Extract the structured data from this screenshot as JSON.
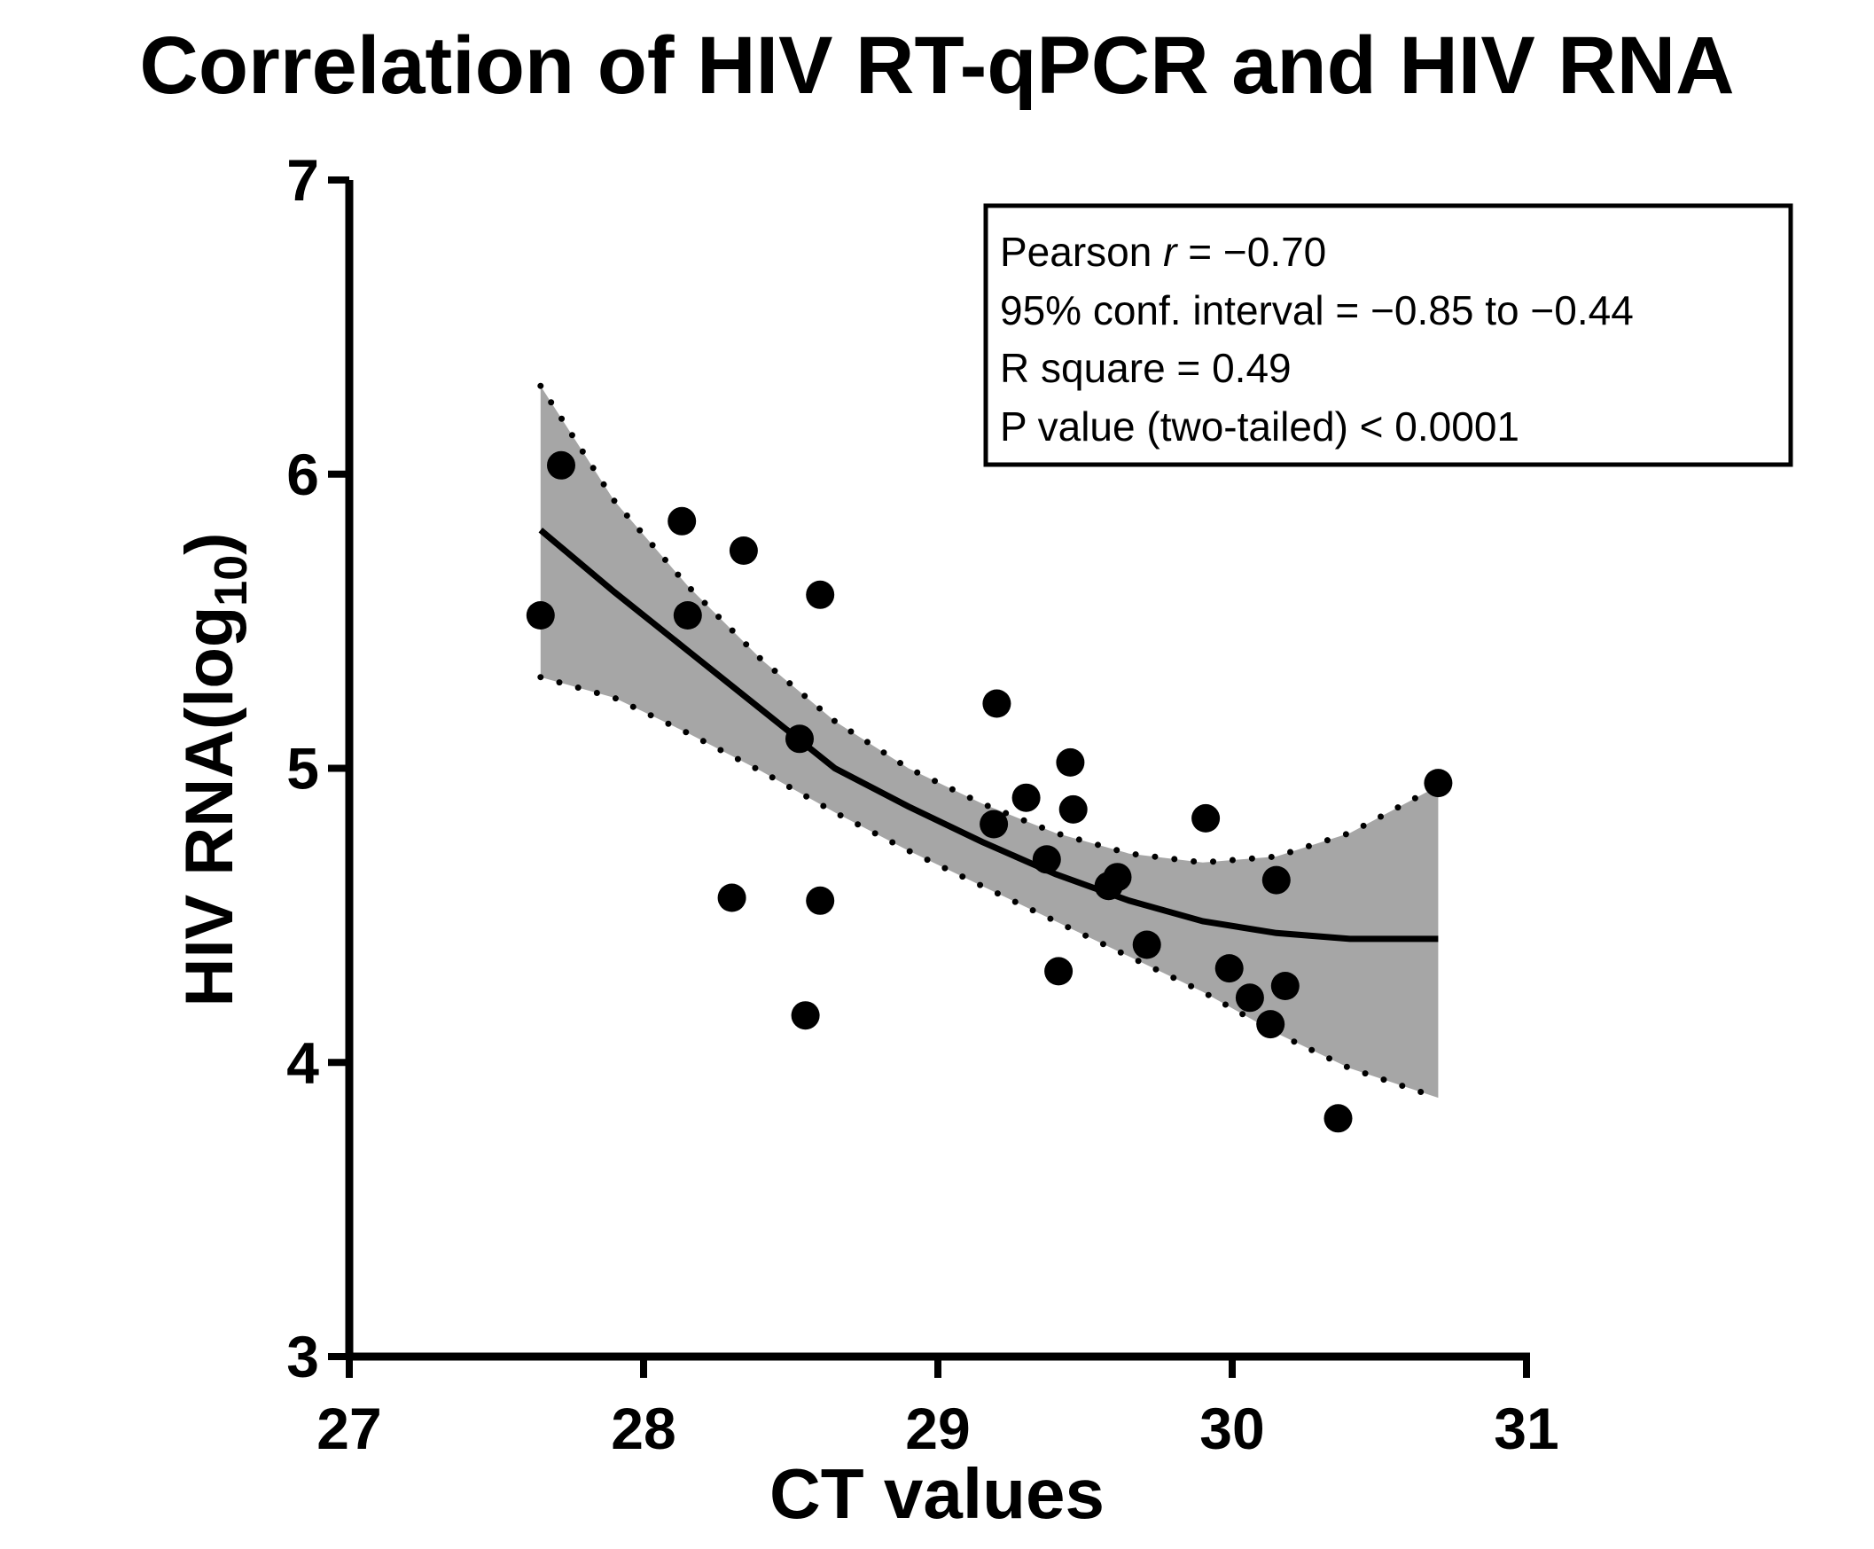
{
  "chart_data": {
    "type": "scatter",
    "title": "Correlation of HIV RT-qPCR and HIV RNA",
    "xlabel": "CT values",
    "ylabel_main": "HIV RNA(log",
    "ylabel_sub": "10",
    "ylabel_close": ")",
    "xlim": [
      27,
      31
    ],
    "ylim": [
      3,
      7
    ],
    "xticks": [
      27,
      28,
      29,
      30,
      31
    ],
    "yticks": [
      3,
      4,
      5,
      6,
      7
    ],
    "grid": false,
    "points": [
      {
        "x": 27.65,
        "y": 5.52
      },
      {
        "x": 27.72,
        "y": 6.03
      },
      {
        "x": 28.13,
        "y": 5.84
      },
      {
        "x": 28.15,
        "y": 5.52
      },
      {
        "x": 28.3,
        "y": 4.56
      },
      {
        "x": 28.34,
        "y": 5.74
      },
      {
        "x": 28.53,
        "y": 5.1
      },
      {
        "x": 28.55,
        "y": 4.16
      },
      {
        "x": 28.6,
        "y": 5.59
      },
      {
        "x": 28.6,
        "y": 4.55
      },
      {
        "x": 29.19,
        "y": 4.81
      },
      {
        "x": 29.2,
        "y": 5.22
      },
      {
        "x": 29.3,
        "y": 4.9
      },
      {
        "x": 29.37,
        "y": 4.69
      },
      {
        "x": 29.41,
        "y": 4.31
      },
      {
        "x": 29.45,
        "y": 5.02
      },
      {
        "x": 29.46,
        "y": 4.86
      },
      {
        "x": 29.58,
        "y": 4.6
      },
      {
        "x": 29.61,
        "y": 4.63
      },
      {
        "x": 29.71,
        "y": 4.4
      },
      {
        "x": 29.91,
        "y": 4.83
      },
      {
        "x": 29.99,
        "y": 4.32
      },
      {
        "x": 30.06,
        "y": 4.22
      },
      {
        "x": 30.13,
        "y": 4.13
      },
      {
        "x": 30.15,
        "y": 4.62
      },
      {
        "x": 30.18,
        "y": 4.26
      },
      {
        "x": 30.36,
        "y": 3.81
      },
      {
        "x": 30.7,
        "y": 4.95
      }
    ],
    "fit": {
      "x": [
        27.65,
        27.9,
        28.15,
        28.4,
        28.65,
        28.9,
        29.15,
        29.4,
        29.65,
        29.9,
        30.15,
        30.4,
        30.7
      ],
      "y": [
        5.81,
        5.6,
        5.4,
        5.2,
        5.0,
        4.87,
        4.75,
        4.64,
        4.55,
        4.48,
        4.44,
        4.42,
        4.42
      ]
    },
    "ci_upper": {
      "x": [
        27.65,
        27.9,
        28.15,
        28.4,
        28.65,
        28.9,
        29.15,
        29.4,
        29.65,
        29.9,
        30.15,
        30.4,
        30.7
      ],
      "y": [
        6.3,
        5.91,
        5.62,
        5.37,
        5.16,
        5.0,
        4.88,
        4.78,
        4.71,
        4.68,
        4.7,
        4.78,
        4.94
      ]
    },
    "ci_lower": {
      "x": [
        27.65,
        27.9,
        28.15,
        28.4,
        28.65,
        28.9,
        29.15,
        29.4,
        29.65,
        29.9,
        30.15,
        30.4,
        30.7
      ],
      "y": [
        5.31,
        5.24,
        5.12,
        4.99,
        4.85,
        4.72,
        4.6,
        4.48,
        4.36,
        4.24,
        4.1,
        3.98,
        3.88
      ]
    },
    "colors": {
      "band_fill": "#a6a6a6",
      "ink": "#000000"
    },
    "stats": {
      "pearson_label": "Pearson ",
      "pearson_symbol": "r",
      "pearson_value": " = −0.70",
      "ci_text": "95% conf. interval = −0.85 to −0.44",
      "r_square_text": "R square = 0.49",
      "p_value_text": "P value (two-tailed) < 0.0001"
    }
  }
}
